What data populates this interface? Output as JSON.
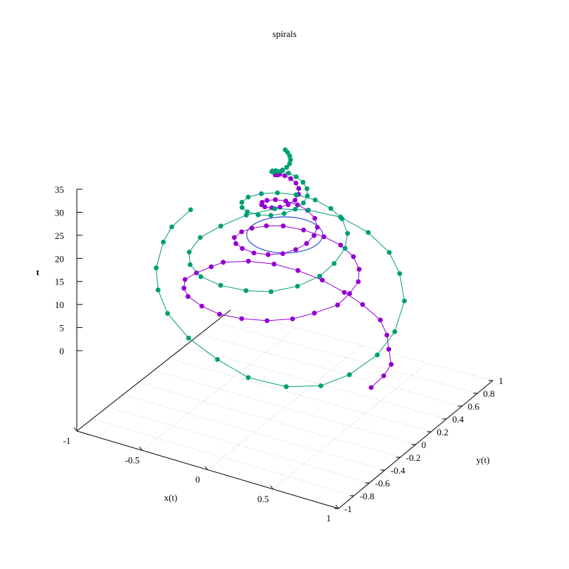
{
  "chart_data": {
    "type": "scatter",
    "title": "spirals",
    "xlabel": "x(t)",
    "ylabel": "y(t)",
    "zlabel": "t",
    "xlim": [
      -1,
      1
    ],
    "ylim": [
      -1,
      1
    ],
    "zlim": [
      0,
      35
    ],
    "xticks": [
      -1,
      -0.5,
      0,
      0.5,
      1
    ],
    "yticks": [
      -1,
      -0.8,
      -0.6,
      -0.4,
      -0.2,
      0,
      0.2,
      0.4,
      0.6,
      0.8,
      1
    ],
    "zticks": [
      0,
      5,
      10,
      15,
      20,
      25,
      30,
      35
    ],
    "xtick_labels": [
      "-1",
      "-0.5",
      "0",
      "0.5",
      "1"
    ],
    "ytick_labels": [
      "-1",
      "-0.8",
      "-0.6",
      "-0.4",
      "-0.2",
      "0",
      "0.2",
      "0.4",
      "0.6",
      "0.8",
      "1"
    ],
    "ztick_labels": [
      "0",
      "5",
      "10",
      "15",
      "20",
      "25",
      "30",
      "35"
    ],
    "grid": true,
    "style": "linespoints",
    "series": [
      {
        "color": "#9400d3",
        "points": [
          [
            0.907,
            -0.42,
            0.0
          ],
          [
            0.914,
            -0.269,
            0.5
          ],
          [
            0.894,
            -0.137,
            1.0
          ],
          [
            0.792,
            0.004,
            1.5
          ],
          [
            0.699,
            0.138,
            2.0
          ],
          [
            0.573,
            0.266,
            2.5
          ],
          [
            0.381,
            0.363,
            3.0
          ],
          [
            0.208,
            0.42,
            3.5
          ],
          [
            0.013,
            0.467,
            4.0
          ],
          [
            -0.177,
            0.474,
            4.5
          ],
          [
            -0.342,
            0.444,
            5.0
          ],
          [
            -0.492,
            0.366,
            5.5
          ],
          [
            -0.61,
            0.24,
            6.0
          ],
          [
            -0.629,
            0.117,
            6.5
          ],
          [
            -0.653,
            -0.035,
            7.0
          ],
          [
            -0.654,
            -0.181,
            7.5
          ],
          [
            -0.582,
            -0.318,
            8.0
          ],
          [
            -0.485,
            -0.431,
            8.5
          ],
          [
            -0.324,
            -0.526,
            9.0
          ],
          [
            -0.151,
            -0.589,
            9.5
          ],
          [
            0.02,
            -0.592,
            10.0
          ],
          [
            0.193,
            -0.557,
            10.5
          ],
          [
            0.34,
            -0.476,
            11.0
          ],
          [
            0.439,
            -0.361,
            11.5
          ],
          [
            0.53,
            -0.215,
            12.0
          ],
          [
            0.535,
            -0.067,
            12.5
          ],
          [
            0.518,
            0.075,
            13.0
          ],
          [
            0.453,
            0.196,
            13.5
          ],
          [
            0.349,
            0.299,
            14.0
          ],
          [
            0.211,
            0.367,
            14.5
          ],
          [
            0.073,
            0.385,
            15.0
          ],
          [
            -0.073,
            0.37,
            15.5
          ],
          [
            -0.201,
            0.323,
            16.0
          ],
          [
            -0.281,
            0.241,
            16.5
          ],
          [
            -0.33,
            0.136,
            17.0
          ],
          [
            -0.346,
            0.03,
            17.5
          ],
          [
            -0.331,
            -0.091,
            18.0
          ],
          [
            -0.263,
            -0.186,
            18.5
          ],
          [
            -0.177,
            -0.25,
            19.0
          ],
          [
            -0.064,
            -0.291,
            19.5
          ],
          [
            0.044,
            -0.29,
            20.0
          ],
          [
            0.136,
            -0.256,
            20.5
          ],
          [
            0.197,
            -0.192,
            21.0
          ],
          [
            0.232,
            -0.111,
            21.5
          ],
          [
            0.235,
            -0.018,
            22.0
          ],
          [
            0.212,
            0.064,
            22.5
          ],
          [
            0.151,
            0.134,
            23.0
          ],
          [
            0.072,
            0.177,
            23.5
          ],
          [
            -0.009,
            0.182,
            24.0
          ],
          [
            -0.086,
            0.161,
            24.5
          ],
          [
            -0.138,
            0.114,
            25.0
          ],
          [
            -0.164,
            0.05,
            25.5
          ],
          [
            -0.162,
            -0.017,
            26.0
          ],
          [
            -0.132,
            -0.075,
            26.5
          ],
          [
            -0.083,
            -0.117,
            27.0
          ],
          [
            -0.02,
            -0.133,
            27.5
          ],
          [
            0.038,
            -0.125,
            28.0
          ],
          [
            0.082,
            -0.094,
            28.5
          ],
          [
            0.106,
            -0.046,
            29.0
          ],
          [
            0.102,
            0.007,
            29.5
          ],
          [
            0.078,
            0.05,
            30.0
          ],
          [
            0.04,
            0.078,
            30.5
          ],
          [
            -0.004,
            0.086,
            31.0
          ],
          [
            -0.043,
            0.074,
            31.5
          ],
          [
            -0.065,
            0.044,
            32.0
          ],
          [
            -0.07,
            0.006,
            32.5
          ],
          [
            -0.054,
            -0.031,
            33.0
          ],
          [
            -0.025,
            -0.053,
            33.5
          ]
        ]
      },
      {
        "color": "#009e73",
        "points": [
          [
            -0.938,
            0.376,
            13.0
          ],
          [
            -0.971,
            0.187,
            11.5
          ],
          [
            -0.96,
            0.058,
            10.0
          ],
          [
            -0.865,
            -0.197,
            8.5
          ],
          [
            -0.747,
            -0.373,
            7.0
          ],
          [
            -0.578,
            -0.538,
            5.5
          ],
          [
            -0.336,
            -0.677,
            4.0
          ],
          [
            -0.073,
            -0.749,
            2.5
          ],
          [
            0.177,
            -0.774,
            1.0
          ],
          [
            0.422,
            -0.697,
            0.0
          ],
          [
            0.611,
            -0.569,
            0.0
          ],
          [
            0.727,
            -0.397,
            1.0
          ],
          [
            0.813,
            -0.181,
            3.0
          ],
          [
            0.832,
            0.013,
            5.5
          ],
          [
            0.77,
            0.244,
            8.5
          ],
          [
            0.633,
            0.415,
            11.0
          ],
          [
            0.491,
            0.522,
            13.0
          ],
          [
            0.296,
            0.581,
            15.0
          ],
          [
            0.079,
            0.592,
            16.5
          ],
          [
            -0.137,
            0.542,
            17.0
          ],
          [
            -0.338,
            0.447,
            17.0
          ],
          [
            -0.47,
            0.302,
            16.5
          ],
          [
            -0.57,
            0.14,
            15.5
          ],
          [
            -0.621,
            -0.04,
            15.0
          ],
          [
            -0.596,
            -0.226,
            14.5
          ],
          [
            -0.502,
            -0.374,
            14.5
          ],
          [
            -0.358,
            -0.481,
            14.5
          ],
          [
            -0.17,
            -0.543,
            15.0
          ],
          [
            0.026,
            -0.546,
            15.5
          ],
          [
            0.19,
            -0.5,
            16.0
          ],
          [
            0.333,
            -0.4,
            17.0
          ],
          [
            0.421,
            -0.261,
            18.0
          ],
          [
            0.447,
            -0.118,
            19.0
          ],
          [
            0.435,
            0.043,
            20.0
          ],
          [
            0.378,
            0.174,
            21.0
          ],
          [
            0.276,
            0.274,
            22.0
          ],
          [
            0.158,
            0.331,
            22.5
          ],
          [
            0.025,
            0.354,
            23.0
          ],
          [
            -0.104,
            0.325,
            23.5
          ],
          [
            -0.207,
            0.259,
            24.0
          ],
          [
            -0.276,
            0.167,
            24.5
          ],
          [
            -0.31,
            0.053,
            25.0
          ],
          [
            -0.293,
            -0.058,
            25.5
          ],
          [
            -0.239,
            -0.147,
            26.0
          ],
          [
            -0.162,
            -0.209,
            26.5
          ],
          [
            -0.064,
            -0.235,
            27.0
          ],
          [
            0.027,
            -0.226,
            27.5
          ],
          [
            0.105,
            -0.186,
            28.0
          ],
          [
            0.154,
            -0.124,
            28.5
          ],
          [
            0.172,
            -0.05,
            29.0
          ],
          [
            0.162,
            0.019,
            29.5
          ],
          [
            0.126,
            0.076,
            30.0
          ],
          [
            0.074,
            0.112,
            30.5
          ],
          [
            0.013,
            0.126,
            31.0
          ],
          [
            -0.039,
            0.117,
            31.5
          ],
          [
            -0.077,
            0.089,
            32.0
          ],
          [
            -0.097,
            0.049,
            32.5
          ],
          [
            -0.097,
            0.006,
            33.0
          ],
          [
            -0.08,
            -0.032,
            33.5
          ],
          [
            -0.05,
            -0.056,
            34.0
          ],
          [
            -0.014,
            -0.064,
            34.5
          ],
          [
            0.018,
            -0.058,
            35.0
          ],
          [
            0.039,
            -0.04,
            35.5
          ],
          [
            0.046,
            -0.015,
            36.0
          ],
          [
            0.04,
            0.008,
            36.5
          ],
          [
            0.024,
            0.024,
            37.0
          ],
          [
            0.005,
            0.03,
            37.5
          ],
          [
            -0.012,
            0.027,
            38.0
          ]
        ]
      }
    ],
    "surface_color": "#4b6ad8"
  }
}
